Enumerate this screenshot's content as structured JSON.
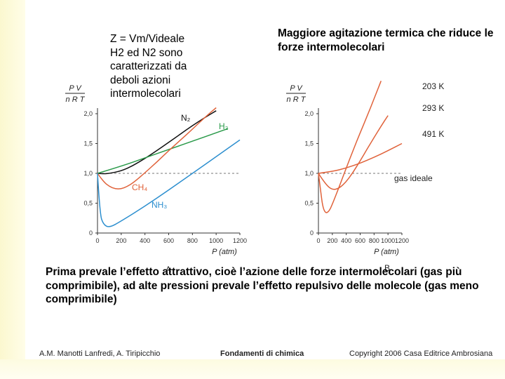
{
  "notes": {
    "left": [
      "Z = Vm/Videale",
      "H2 ed N2 sono",
      "caratterizzati da",
      "deboli azioni",
      "intermolecolari"
    ],
    "right": "Maggiore agitazione termica che riduce le forze intermolecolari"
  },
  "explanation": "Prima prevale l’effetto attrattivo, cioè l’azione delle forze intermolecolari (gas più comprimibile), ad alte pressioni prevale l’effetto repulsivo delle molecole (gas meno comprimibile)",
  "footer": {
    "authors": "A.M. Manotti Lanfredi, A. Tiripicchio",
    "book": "Fondamenti di chimica",
    "copyright": "Copyright 2006 Casa Editrice Ambrosiana"
  },
  "chart_data": [
    {
      "type": "line",
      "panel": "A",
      "ylabel_num": "P V",
      "ylabel_den": "n R T",
      "xlabel": "P (atm)",
      "x_ticks": [
        "0",
        "200",
        "400",
        "600",
        "800",
        "1000",
        "1200"
      ],
      "y_ticks": [
        "0",
        "0,5",
        "1,0",
        "1,5",
        "2,0"
      ],
      "xlim": [
        0,
        1200
      ],
      "ylim": [
        0,
        2.0
      ],
      "reference_line": 1.0,
      "series": [
        {
          "name": "N2",
          "label": "N₂",
          "color": "#111111",
          "x": [
            0,
            50,
            100,
            200,
            300,
            400,
            500,
            600,
            700,
            800,
            900,
            1000
          ],
          "y": [
            1.0,
            0.99,
            1.0,
            1.04,
            1.13,
            1.25,
            1.38,
            1.52,
            1.66,
            1.8,
            1.93,
            2.05
          ]
        },
        {
          "name": "H2",
          "label": "H₂",
          "color": "#2a9a4a",
          "x": [
            0,
            200,
            400,
            600,
            800,
            1000,
            1100
          ],
          "y": [
            1.0,
            1.12,
            1.26,
            1.4,
            1.54,
            1.68,
            1.75
          ]
        },
        {
          "name": "CH4",
          "label": "CH₄",
          "color": "#e0623a",
          "x": [
            0,
            50,
            100,
            150,
            200,
            250,
            300,
            400,
            500,
            600,
            700,
            800,
            900,
            1000
          ],
          "y": [
            1.0,
            0.86,
            0.78,
            0.74,
            0.74,
            0.78,
            0.84,
            1.01,
            1.19,
            1.38,
            1.56,
            1.74,
            1.93,
            2.1
          ]
        },
        {
          "name": "NH3",
          "label": "NH₃",
          "color": "#2d8fcf",
          "x": [
            0,
            20,
            50,
            100,
            200,
            400,
            600,
            800,
            1000,
            1200
          ],
          "y": [
            1.0,
            0.32,
            0.14,
            0.09,
            0.2,
            0.45,
            0.72,
            1.0,
            1.28,
            1.56
          ]
        }
      ]
    },
    {
      "type": "line",
      "panel": "B",
      "ylabel_num": "P V",
      "ylabel_den": "n R T",
      "xlabel": "P (atm)",
      "x_ticks": [
        "0",
        "200",
        "400",
        "600",
        "800",
        "1000",
        "1200"
      ],
      "y_ticks": [
        "0",
        "0,5",
        "1,0",
        "1,5",
        "2,0"
      ],
      "xlim": [
        0,
        1200
      ],
      "ylim": [
        0,
        2.0
      ],
      "reference_line": 1.0,
      "reference_label": "gas ideale",
      "series": [
        {
          "name": "203 K",
          "label": "203 K",
          "color": "#e0623a",
          "x": [
            0,
            30,
            60,
            100,
            150,
            200,
            300,
            400,
            500,
            600,
            700,
            800,
            900
          ],
          "y": [
            1.0,
            0.72,
            0.45,
            0.33,
            0.36,
            0.48,
            0.78,
            1.09,
            1.39,
            1.68,
            1.96,
            2.25,
            2.55
          ]
        },
        {
          "name": "293 K",
          "label": "293 K",
          "color": "#e0623a",
          "x": [
            0,
            100,
            200,
            300,
            400,
            500,
            600,
            700,
            800,
            900,
            1000
          ],
          "y": [
            1.0,
            0.82,
            0.72,
            0.75,
            0.86,
            1.02,
            1.21,
            1.41,
            1.6,
            1.79,
            1.97
          ]
        },
        {
          "name": "491 K",
          "label": "491 K",
          "color": "#e0623a",
          "x": [
            0,
            200,
            400,
            600,
            800,
            1000,
            1200
          ],
          "y": [
            1.0,
            1.03,
            1.09,
            1.17,
            1.27,
            1.38,
            1.5
          ]
        }
      ]
    }
  ]
}
